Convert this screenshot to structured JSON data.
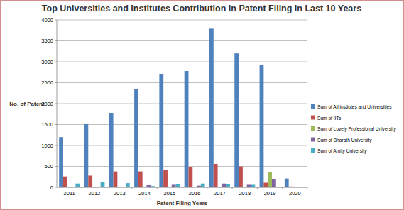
{
  "chart_data": {
    "type": "bar",
    "title": "Top Universities and Institutes Contribution In Patent Filing In Last 10 Years",
    "x_label": "Patent Filing Years",
    "y_label": "No. of Patent",
    "categories": [
      "2011",
      "2012",
      "2013",
      "2014",
      "2015",
      "2016",
      "2017",
      "2018",
      "2019",
      "2020"
    ],
    "series": [
      {
        "name": "Sum of All instiutes and Universities",
        "color": "#4f81bd",
        "values": [
          1200,
          1510,
          1780,
          2350,
          2710,
          2780,
          3790,
          3200,
          2920,
          210
        ]
      },
      {
        "name": "Sum of IITs",
        "color": "#c0504d",
        "values": [
          260,
          280,
          380,
          380,
          410,
          490,
          560,
          500,
          110,
          20
        ]
      },
      {
        "name": "Sum of Lovely Professional University",
        "color": "#9bbb59",
        "values": [
          0,
          0,
          0,
          0,
          0,
          0,
          0,
          0,
          360,
          10
        ]
      },
      {
        "name": "Sum of Bharath University",
        "color": "#8064a2",
        "values": [
          0,
          5,
          10,
          50,
          60,
          40,
          90,
          60,
          200,
          10
        ]
      },
      {
        "name": "Sum of Amity University",
        "color": "#4bacc6",
        "values": [
          90,
          130,
          100,
          30,
          70,
          90,
          80,
          60,
          0,
          10
        ]
      }
    ],
    "ylim": [
      0,
      4000
    ],
    "yticks": [
      0,
      500,
      1000,
      1500,
      2000,
      2500,
      3000,
      3500,
      4000
    ],
    "grid": true,
    "legend": "right"
  }
}
